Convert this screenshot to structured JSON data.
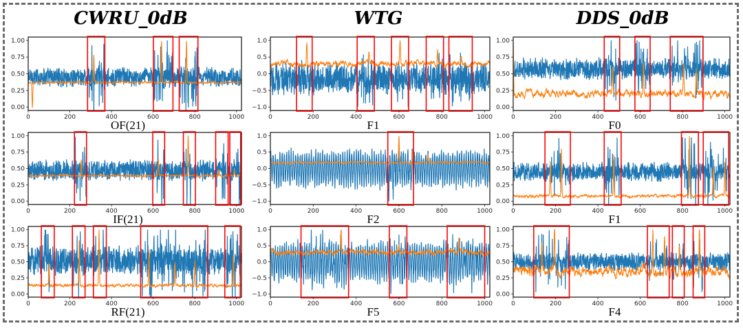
{
  "figure": {
    "column_titles": [
      "CWRU_0dB",
      "WTG",
      "DDS_0dB"
    ]
  },
  "colors": {
    "signal": "#1f77b4",
    "attention": "#ff7f0e",
    "highlight_box": "#ff0000",
    "border": "#6b6b6b"
  },
  "chart_data": [
    {
      "type": "line",
      "dataset": "CWRU_0dB",
      "label": "OF(21)",
      "xlim": [
        0,
        1024
      ],
      "ylim": [
        -0.05,
        1.05
      ],
      "xticks": [
        0,
        200,
        400,
        600,
        800,
        1000
      ],
      "yticks": [
        "0.00",
        "0.25",
        "0.50",
        "0.75",
        "1.00"
      ],
      "ytick_values": [
        0,
        0.25,
        0.5,
        0.75,
        1.0
      ],
      "series": [
        {
          "name": "signal",
          "baseline": 0.45,
          "amplitude": 0.09
        },
        {
          "name": "attention",
          "baseline": 0.37,
          "amplitude": 0.02,
          "peaks": [
            [
              20,
              0.0
            ],
            [
              315,
              0.78
            ],
            [
              640,
              1.0
            ],
            [
              760,
              1.0
            ]
          ]
        }
      ],
      "highlight_regions": [
        [
          285,
          368
        ],
        [
          601,
          695
        ],
        [
          725,
          815
        ]
      ]
    },
    {
      "type": "line",
      "dataset": "CWRU_0dB",
      "label": "IF(21)",
      "xlim": [
        0,
        1024
      ],
      "ylim": [
        -0.05,
        1.05
      ],
      "xticks": [
        0,
        200,
        400,
        600,
        800,
        1000
      ],
      "yticks": [
        "0.00",
        "0.25",
        "0.50",
        "0.75",
        "1.00"
      ],
      "ytick_values": [
        0,
        0.25,
        0.5,
        0.75,
        1.0
      ],
      "series": [
        {
          "name": "signal",
          "baseline": 0.47,
          "amplitude": 0.1
        },
        {
          "name": "attention",
          "baseline": 0.39,
          "amplitude": 0.02,
          "peaks": [
            [
              255,
              0.64
            ],
            [
              625,
              0.65
            ],
            [
              768,
              1.0
            ],
            [
              915,
              0.48
            ],
            [
              990,
              0.48
            ]
          ]
        }
      ],
      "highlight_regions": [
        [
          222,
          280
        ],
        [
          598,
          655
        ],
        [
          745,
          803
        ],
        [
          900,
          960
        ],
        [
          968,
          1020
        ]
      ]
    },
    {
      "type": "line",
      "dataset": "CWRU_0dB",
      "label": "RF(21)",
      "xlim": [
        0,
        1024
      ],
      "ylim": [
        -0.05,
        1.05
      ],
      "xticks": [
        0,
        200,
        400,
        600,
        800,
        1000
      ],
      "yticks": [
        "0.00",
        "0.25",
        "0.50",
        "0.75",
        "1.00"
      ],
      "ytick_values": [
        0,
        0.25,
        0.5,
        0.75,
        1.0
      ],
      "series": [
        {
          "name": "signal",
          "baseline": 0.52,
          "amplitude": 0.14
        },
        {
          "name": "attention",
          "baseline": 0.13,
          "amplitude": 0.03,
          "peaks": [
            [
              100,
              0.49
            ],
            [
              245,
              0.82
            ],
            [
              340,
              1.0
            ],
            [
              580,
              0.69
            ],
            [
              705,
              0.49
            ],
            [
              800,
              0.52
            ],
            [
              985,
              0.62
            ]
          ]
        }
      ],
      "highlight_regions": [
        [
          63,
          125
        ],
        [
          212,
          273
        ],
        [
          313,
          375
        ],
        [
          540,
          862
        ],
        [
          944,
          1018
        ]
      ]
    },
    {
      "type": "line",
      "dataset": "WTG",
      "label": "F1",
      "xlim": [
        0,
        1024
      ],
      "ylim": [
        -1.1,
        1.1
      ],
      "xticks": [
        0,
        200,
        400,
        600,
        800,
        1000
      ],
      "yticks": [
        "−1.0",
        "−0.5",
        "0.0",
        "0.5",
        "1.0"
      ],
      "ytick_values": [
        -1,
        -0.5,
        0,
        0.5,
        1
      ],
      "series": [
        {
          "name": "signal",
          "baseline": -0.15,
          "amplitude": 0.3
        },
        {
          "name": "attention",
          "baseline": 0.3,
          "amplitude": 0.12,
          "peaks": [
            [
              170,
              0.95
            ],
            [
              460,
              0.68
            ],
            [
              605,
              1.0
            ],
            [
              780,
              0.8
            ],
            [
              890,
              0.57
            ]
          ]
        }
      ],
      "highlight_regions": [
        [
          122,
          195
        ],
        [
          405,
          485
        ],
        [
          565,
          645
        ],
        [
          727,
          808
        ],
        [
          833,
          942
        ]
      ]
    },
    {
      "type": "line",
      "dataset": "WTG",
      "label": "F2",
      "xlim": [
        0,
        1024
      ],
      "ylim": [
        -1.1,
        1.1
      ],
      "xticks": [
        0,
        200,
        400,
        600,
        800,
        1000
      ],
      "yticks": [
        "−1.0",
        "−0.5",
        "0.0",
        "0.5",
        "1.0"
      ],
      "ytick_values": [
        -1,
        -0.5,
        0,
        0.5,
        1
      ],
      "series": [
        {
          "name": "signal",
          "baseline": 0.0,
          "amplitude": 0.45,
          "oscillatory": true
        },
        {
          "name": "attention",
          "baseline": 0.18,
          "amplitude": 0.04,
          "peaks": [
            [
              600,
              1.0
            ],
            [
              665,
              0.57
            ],
            [
              735,
              0.42
            ]
          ]
        }
      ],
      "highlight_regions": [
        [
          548,
          668
        ]
      ]
    },
    {
      "type": "line",
      "dataset": "WTG",
      "label": "F5",
      "xlim": [
        0,
        1024
      ],
      "ylim": [
        -1.1,
        1.1
      ],
      "xticks": [
        0,
        200,
        400,
        600,
        800,
        1000
      ],
      "yticks": [
        "−1.0",
        "−0.5",
        "0.0",
        "0.5",
        "1.0"
      ],
      "ytick_values": [
        -1,
        -0.5,
        0,
        0.5,
        1
      ],
      "series": [
        {
          "name": "signal",
          "baseline": 0.0,
          "amplitude": 0.5,
          "oscillatory": true
        },
        {
          "name": "attention",
          "baseline": 0.3,
          "amplitude": 0.12,
          "peaks": [
            [
              330,
              1.0
            ],
            [
              600,
              0.62
            ],
            [
              880,
              0.78
            ]
          ]
        }
      ],
      "highlight_regions": [
        [
          143,
          365
        ],
        [
          555,
          637
        ],
        [
          825,
          1000
        ]
      ]
    },
    {
      "type": "line",
      "dataset": "DDS_0dB",
      "label": "F0",
      "xlim": [
        0,
        1024
      ],
      "ylim": [
        -0.05,
        1.05
      ],
      "xticks": [
        0,
        200,
        400,
        600,
        800,
        1000
      ],
      "yticks": [
        "0.00",
        "0.25",
        "0.50",
        "0.75",
        "1.00"
      ],
      "ytick_values": [
        0,
        0.25,
        0.5,
        0.75,
        1.0
      ],
      "series": [
        {
          "name": "signal",
          "baseline": 0.57,
          "amplitude": 0.1
        },
        {
          "name": "attention",
          "baseline": 0.2,
          "amplitude": 0.08,
          "peaks": [
            [
              0,
              1.0
            ],
            [
              470,
              0.58
            ],
            [
              615,
              0.68
            ],
            [
              805,
              0.66
            ],
            [
              865,
              0.6
            ]
          ]
        }
      ],
      "highlight_regions": [
        [
          430,
          503
        ],
        [
          575,
          647
        ],
        [
          742,
          897
        ]
      ]
    },
    {
      "type": "line",
      "dataset": "DDS_0dB",
      "label": "F1",
      "xlim": [
        0,
        1024
      ],
      "ylim": [
        -0.05,
        1.05
      ],
      "xticks": [
        0,
        200,
        400,
        600,
        800,
        1000
      ],
      "yticks": [
        "0.00",
        "0.25",
        "0.50",
        "0.75",
        "1.00"
      ],
      "ytick_values": [
        0,
        0.25,
        0.5,
        0.75,
        1.0
      ],
      "series": [
        {
          "name": "signal",
          "baseline": 0.45,
          "amplitude": 0.09
        },
        {
          "name": "attention",
          "baseline": 0.08,
          "amplitude": 0.03,
          "peaks": [
            [
              175,
              0.61
            ],
            [
              228,
              0.81
            ],
            [
              475,
              0.72
            ],
            [
              833,
              1.0
            ],
            [
              945,
              0.52
            ],
            [
              1000,
              0.59
            ]
          ]
        }
      ],
      "highlight_regions": [
        [
          150,
          270
        ],
        [
          430,
          510
        ],
        [
          795,
          875
        ],
        [
          898,
          1018
        ]
      ]
    },
    {
      "type": "line",
      "dataset": "DDS_0dB",
      "label": "F4",
      "xlim": [
        0,
        1024
      ],
      "ylim": [
        -0.05,
        1.05
      ],
      "xticks": [
        0,
        200,
        400,
        600,
        800,
        1000
      ],
      "yticks": [
        "0.00",
        "0.25",
        "0.50",
        "0.75",
        "1.00"
      ],
      "ytick_values": [
        0,
        0.25,
        0.5,
        0.75,
        1.0
      ],
      "series": [
        {
          "name": "signal",
          "baseline": 0.5,
          "amplitude": 0.09
        },
        {
          "name": "attention",
          "baseline": 0.35,
          "amplitude": 0.12,
          "peaks": [
            [
              195,
              1.0
            ],
            [
              135,
              0.83
            ],
            [
              660,
              0.98
            ],
            [
              715,
              0.95
            ],
            [
              785,
              0.81
            ],
            [
              880,
              0.98
            ]
          ]
        }
      ],
      "highlight_regions": [
        [
          97,
          265
        ],
        [
          634,
          737
        ],
        [
          752,
          808
        ],
        [
          850,
          905
        ]
      ]
    }
  ]
}
